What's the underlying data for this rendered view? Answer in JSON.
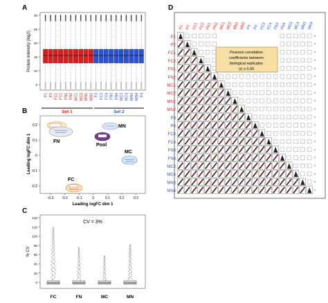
{
  "panels": {
    "a": {
      "letter": "A",
      "ylabel": "Protein intensity (log2)",
      "yticks": [
        "30",
        "25",
        "20",
        "15",
        "10",
        "5"
      ],
      "set1": {
        "label": "Set 1",
        "samples": [
          "P1",
          "P2",
          "FC1",
          "FC2",
          "FN1",
          "FN2",
          "MC1",
          "MC2",
          "MN1",
          "MN2"
        ]
      },
      "set2": {
        "label": "Set 2",
        "samples": [
          "P3",
          "FC3",
          "FC4",
          "FN3",
          "FN4",
          "MC3",
          "MC4",
          "MN3",
          "MN4",
          "P4"
        ]
      },
      "colors": {
        "set1": "#e01b1b",
        "set2": "#2a52d6"
      }
    },
    "b": {
      "letter": "B",
      "xlabel": "Leading logFC dim 1",
      "ylabel": "Leading logFC dim 1",
      "xticks": [
        "-0.3",
        "-0.2",
        "-0.1",
        "0",
        "0.1",
        "0.2",
        "0.3"
      ],
      "yticks": [
        "0.2",
        "0.1",
        "0",
        "-0.1",
        "-0.2"
      ],
      "groups": [
        "FN",
        "MN",
        "Pool",
        "MC",
        "FC"
      ]
    },
    "c": {
      "letter": "C",
      "ylabel": "% CV",
      "annotation": "CV = 3%",
      "yticks": [
        "140",
        "120",
        "100",
        "80",
        "60",
        "40",
        "20",
        "0"
      ],
      "categories": [
        "FC",
        "FN",
        "MC",
        "MN"
      ]
    },
    "d": {
      "letter": "D",
      "annotation": [
        "Pearson correlation",
        "coefficients between",
        "biological replicates",
        "(r) ≥ 0.99"
      ],
      "labels": [
        "P1",
        "P2",
        "FC1",
        "FC2",
        "FN1",
        "FN2",
        "MC1",
        "MC2",
        "MN1",
        "MN2",
        "P3",
        "P4",
        "FC3",
        "FC4",
        "FN3",
        "FN4",
        "MC3",
        "MC4",
        "MN3",
        "MN4"
      ],
      "colors": {
        "set1": "#e01b1b",
        "set2": "#2a52d6"
      }
    }
  }
}
